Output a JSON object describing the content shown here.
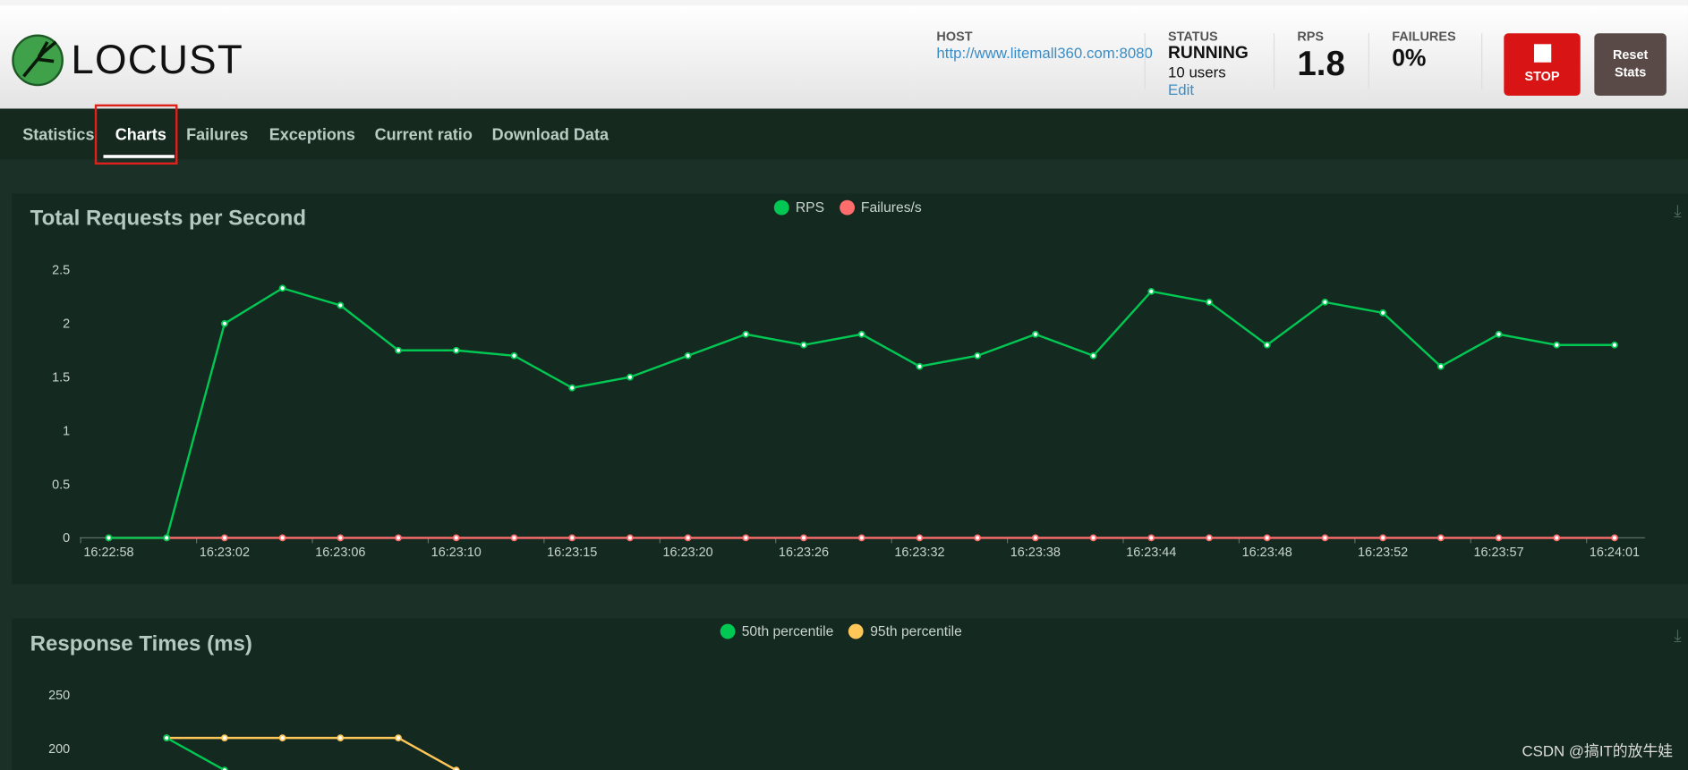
{
  "header": {
    "logo_text": "LOCUST",
    "host_label": "HOST",
    "host_value": "http://www.litemall360.com:8080",
    "status_label": "STATUS",
    "status_value": "RUNNING",
    "users": "10 users",
    "edit": "Edit",
    "rps_label": "RPS",
    "rps_value": "1.8",
    "failures_label": "FAILURES",
    "failures_value": "0%",
    "stop_label": "STOP",
    "reset_label": "Reset Stats"
  },
  "nav": {
    "tabs": [
      "Statistics",
      "Charts",
      "Failures",
      "Exceptions",
      "Current ratio",
      "Download Data"
    ],
    "active": "Charts"
  },
  "watermark": "CSDN @搞IT的放牛娃",
  "chart_data": [
    {
      "type": "line",
      "title": "Total Requests per Second",
      "ylim": [
        0,
        2.5
      ],
      "yticks": [
        "0",
        "0.5",
        "1",
        "1.5",
        "2",
        "2.5"
      ],
      "xtick_labels": [
        "16:22:58",
        "16:23:02",
        "16:23:06",
        "16:23:10",
        "16:23:15",
        "16:23:20",
        "16:23:26",
        "16:23:32",
        "16:23:38",
        "16:23:44",
        "16:23:48",
        "16:23:52",
        "16:23:57",
        "16:24:01"
      ],
      "legend_position": "top-center",
      "series": [
        {
          "name": "RPS",
          "color": "#00c853",
          "values": [
            0,
            0,
            2.0,
            2.33,
            2.17,
            1.75,
            1.75,
            1.7,
            1.4,
            1.5,
            1.7,
            1.9,
            1.8,
            1.9,
            1.6,
            1.7,
            1.9,
            1.7,
            2.3,
            2.2,
            1.8,
            2.2,
            2.1,
            1.6,
            1.9,
            1.8,
            1.8
          ]
        },
        {
          "name": "Failures/s",
          "color": "#ff6d6d",
          "values": [
            0,
            0,
            0,
            0,
            0,
            0,
            0,
            0,
            0,
            0,
            0,
            0,
            0,
            0,
            0,
            0,
            0,
            0,
            0,
            0,
            0,
            0,
            0,
            0,
            0,
            0,
            0
          ]
        }
      ]
    },
    {
      "type": "line",
      "title": "Response Times (ms)",
      "yticks": [
        "200",
        "250"
      ],
      "legend_position": "top-center",
      "series": [
        {
          "name": "50th percentile",
          "color": "#00c853",
          "values": [
            null,
            210,
            180
          ]
        },
        {
          "name": "95th percentile",
          "color": "#ffc658",
          "values": [
            null,
            210,
            210,
            210,
            210,
            210,
            180
          ]
        }
      ]
    }
  ]
}
